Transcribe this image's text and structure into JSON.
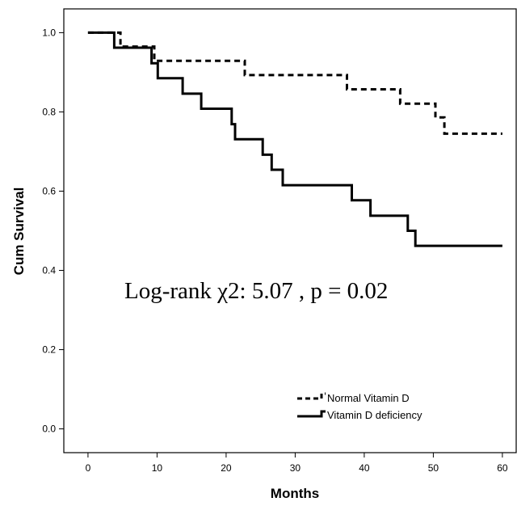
{
  "chart_data": {
    "type": "line",
    "subtype": "kaplan-meier-step",
    "title": "",
    "xlabel": "Months",
    "ylabel": "Cum Survival",
    "xlim": [
      -3.5,
      62
    ],
    "ylim": [
      -0.06,
      1.06
    ],
    "x_ticks": [
      0,
      10,
      20,
      30,
      40,
      50,
      60
    ],
    "y_ticks": [
      0.0,
      0.2,
      0.4,
      0.6,
      0.8,
      1.0
    ],
    "y_tick_labels": [
      "0.0",
      "0.2",
      "0.4",
      "0.6",
      "0.8",
      "1.0"
    ],
    "grid": false,
    "legend_position": "bottom-right",
    "annotation": "Log-rank χ2: 5.07  , p = 0.02",
    "series": [
      {
        "name": "Normal Vitamin D",
        "line_style": "dashed",
        "color": "#000000",
        "x": [
          0,
          4.7,
          9.6,
          22.7,
          37.5,
          45.2,
          50.3,
          51.6,
          60
        ],
        "y": [
          1.0,
          0.965,
          0.929,
          0.893,
          0.857,
          0.821,
          0.786,
          0.745,
          0.745
        ]
      },
      {
        "name": "Vitamin D deficiency",
        "line_style": "solid",
        "color": "#000000",
        "x": [
          0,
          3.8,
          9.2,
          10.1,
          13.7,
          16.4,
          20.8,
          21.3,
          25.3,
          26.6,
          28.2,
          38.2,
          40.9,
          46.3,
          47.4,
          60
        ],
        "y": [
          1.0,
          0.962,
          0.923,
          0.885,
          0.846,
          0.808,
          0.769,
          0.731,
          0.692,
          0.654,
          0.615,
          0.577,
          0.538,
          0.5,
          0.462,
          0.462
        ]
      }
    ]
  }
}
